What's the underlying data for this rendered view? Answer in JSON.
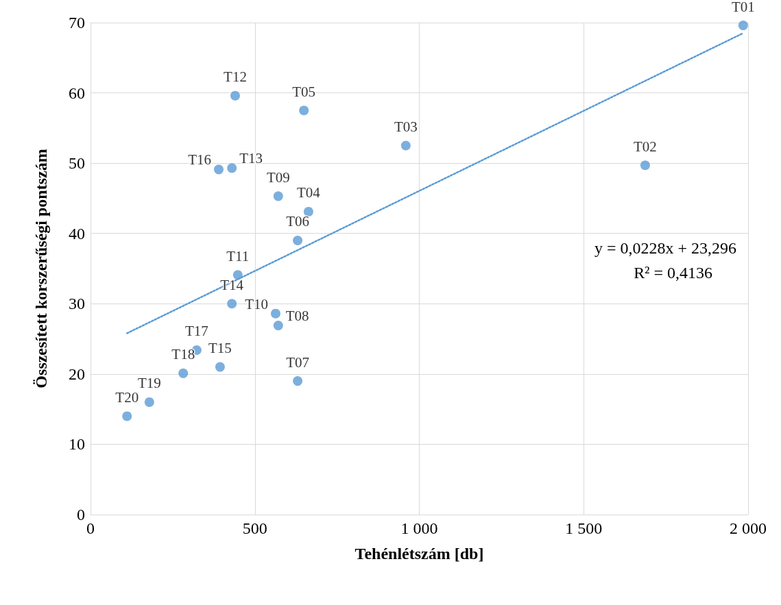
{
  "chart_data": {
    "type": "scatter",
    "xlabel": "Tehénlétszám [db]",
    "ylabel": "Összesített korszerűségi pontszám",
    "xlim": [
      0,
      2000
    ],
    "xticks": [
      0,
      500,
      {
        "value": 1000,
        "label": "1 000"
      },
      {
        "value": 1500,
        "label": "1 500"
      },
      {
        "value": 2000,
        "label": "2 000"
      }
    ],
    "ylim": [
      0,
      70
    ],
    "yticks": [
      0,
      10,
      20,
      30,
      40,
      50,
      60,
      70
    ],
    "grid": true,
    "marker": "circle",
    "series": [
      {
        "color": "#5b9bd5",
        "x": [
          1985,
          1687,
          959,
          663,
          649,
          630,
          630,
          571,
          571,
          563,
          448,
          440,
          430,
          430,
          394,
          390,
          323,
          282,
          179,
          111
        ],
        "values": [
          69.6,
          49.7,
          52.5,
          43.1,
          57.5,
          39.0,
          19.0,
          26.9,
          45.3,
          28.6,
          34.1,
          59.6,
          49.3,
          30.0,
          21.0,
          49.1,
          23.4,
          20.1,
          16.0,
          14.0
        ],
        "value_labels": [
          "T01",
          "T02",
          "T03",
          "T04",
          "T05",
          "T06",
          "T07",
          "T08",
          "T09",
          "T10",
          "T11",
          "T12",
          "T13",
          "T14",
          "T15",
          "T16",
          "T17",
          "T18",
          "T19",
          "T20"
        ]
      },
      {
        "type": "line",
        "color": "#5b9bd5",
        "line_style": "dotted",
        "marker": "none",
        "x": [
          111,
          1985
        ],
        "values": [
          25.8,
          68.5
        ]
      }
    ],
    "annotations": [
      "y = 0,0228x + 23,296",
      "R² = 0,4136"
    ]
  }
}
